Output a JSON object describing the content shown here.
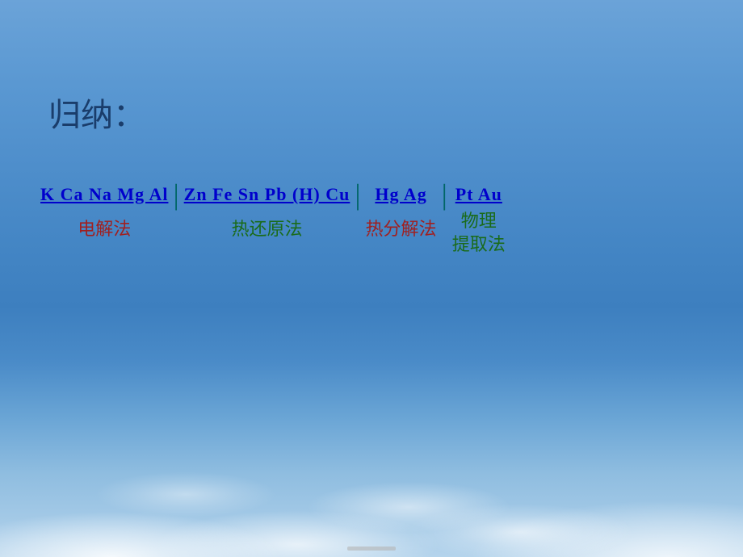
{
  "title": "归纳：",
  "title_color": "#1a3d6b",
  "divider_char": "|",
  "groups": [
    {
      "elements": "K  Ca  Na  Mg  Al",
      "elements_color": "#0000cc",
      "method": "电解法",
      "method_color": "#a02020",
      "multiline": false
    },
    {
      "elements": "Zn  Fe  Sn  Pb  (H)  Cu",
      "elements_color": "#0000cc",
      "method": "热还原法",
      "method_color": "#1a6b1a",
      "multiline": false
    },
    {
      "elements": "Hg  Ag",
      "elements_color": "#0000cc",
      "method": "热分解法",
      "method_color": "#a02020",
      "multiline": false
    },
    {
      "elements": "Pt  Au",
      "elements_color": "#0000cc",
      "method_line1": "物理",
      "method_line2": "提取法",
      "method_color": "#1a6b1a",
      "multiline": true
    }
  ],
  "divider_color": "#006666"
}
